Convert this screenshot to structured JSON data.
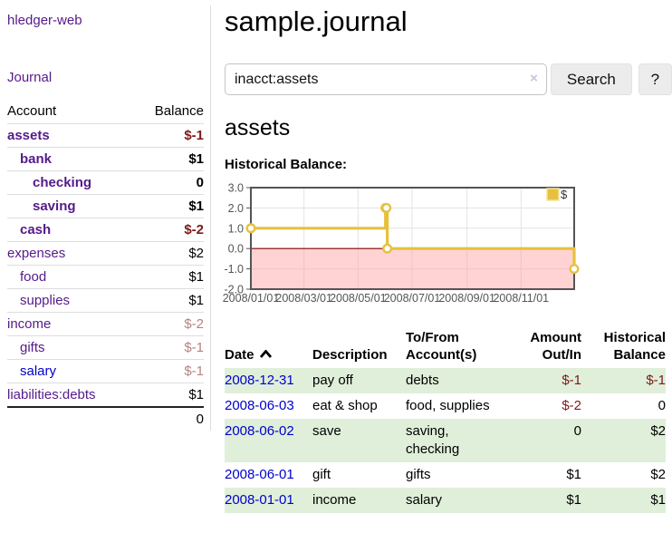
{
  "brand": "hledger-web",
  "nav": {
    "journal": "Journal"
  },
  "sidebar": {
    "header": {
      "account": "Account",
      "balance": "Balance"
    },
    "accounts": [
      {
        "name": "assets",
        "depth": 0,
        "in_filter": true,
        "balance": "$-1",
        "neg": "strong",
        "link": "visited"
      },
      {
        "name": "bank",
        "depth": 1,
        "in_filter": true,
        "balance": "$1",
        "neg": "none",
        "link": "visited"
      },
      {
        "name": "checking",
        "depth": 2,
        "in_filter": true,
        "balance": "0",
        "neg": "none",
        "link": "visited"
      },
      {
        "name": "saving",
        "depth": 2,
        "in_filter": true,
        "balance": "$1",
        "neg": "none",
        "link": "visited"
      },
      {
        "name": "cash",
        "depth": 1,
        "in_filter": true,
        "balance": "$-2",
        "neg": "strong",
        "link": "visited"
      },
      {
        "name": "expenses",
        "depth": 0,
        "in_filter": false,
        "balance": "$2",
        "neg": "none",
        "link": "visited"
      },
      {
        "name": "food",
        "depth": 1,
        "in_filter": false,
        "balance": "$1",
        "neg": "none",
        "link": "visited"
      },
      {
        "name": "supplies",
        "depth": 1,
        "in_filter": false,
        "balance": "$1",
        "neg": "none",
        "link": "visited"
      },
      {
        "name": "income",
        "depth": 0,
        "in_filter": false,
        "balance": "$-2",
        "neg": "muted",
        "link": "visited"
      },
      {
        "name": "gifts",
        "depth": 1,
        "in_filter": false,
        "balance": "$-1",
        "neg": "muted",
        "link": "visited"
      },
      {
        "name": "salary",
        "depth": 1,
        "in_filter": false,
        "balance": "$-1",
        "neg": "muted",
        "link": "unvisited"
      },
      {
        "name": "liabilities:debts",
        "depth": 0,
        "in_filter": false,
        "balance": "$1",
        "neg": "none",
        "link": "visited"
      }
    ],
    "total": "0"
  },
  "main": {
    "title": "sample.journal",
    "search": {
      "value": "inacct:assets",
      "clear_icon": "×",
      "search_button": "Search",
      "help_button": "?"
    },
    "account_heading": "assets",
    "section_heading": "Historical Balance:"
  },
  "chart_data": {
    "type": "line",
    "step": true,
    "title": "Historical Balance",
    "series": [
      {
        "name": "$",
        "color": "#e7c13e",
        "points": [
          [
            "2008-01-01",
            1
          ],
          [
            "2008-06-01",
            2
          ],
          [
            "2008-06-02",
            2
          ],
          [
            "2008-06-03",
            0
          ],
          [
            "2008-12-31",
            -1
          ]
        ]
      }
    ],
    "x_range": [
      "2008-01-01",
      "2008-12-31"
    ],
    "x_ticks": [
      "2008/01/01",
      "2008/03/01",
      "2008/05/01",
      "2008/07/01",
      "2008/09/01",
      "2008/11/01"
    ],
    "y_ticks": [
      "3.0",
      "2.0",
      "1.0",
      "0.0",
      "-1.0",
      "-2.0"
    ],
    "ylim": [
      -2,
      3
    ],
    "grid": true,
    "legend": {
      "label": "$",
      "position": "top-right"
    },
    "colors": {
      "zero_line": "#8b0000",
      "negative_region": "rgba(255,158,158,0.45)",
      "gridline": "#e3e3e3",
      "frame": "#545454",
      "tick_text": "#545454",
      "legend_border": "#f4e3a1"
    }
  },
  "register": {
    "headers": {
      "date": "Date",
      "description": "Description",
      "accounts": "To/From\nAccount(s)",
      "amount": "Amount\nOut/In",
      "balance": "Historical\nBalance"
    },
    "rows": [
      {
        "date": "2008-12-31",
        "description": "pay off",
        "accounts": "debts",
        "amount": "$-1",
        "amount_neg": true,
        "balance": "$-1",
        "balance_neg": true
      },
      {
        "date": "2008-06-03",
        "description": "eat & shop",
        "accounts": "food, supplies",
        "amount": "$-2",
        "amount_neg": true,
        "balance": "0",
        "balance_neg": false
      },
      {
        "date": "2008-06-02",
        "description": "save",
        "accounts": "saving,\nchecking",
        "amount": "0",
        "amount_neg": false,
        "balance": "$2",
        "balance_neg": false
      },
      {
        "date": "2008-06-01",
        "description": "gift",
        "accounts": "gifts",
        "amount": "$1",
        "amount_neg": false,
        "balance": "$2",
        "balance_neg": false
      },
      {
        "date": "2008-01-01",
        "description": "income",
        "accounts": "salary",
        "amount": "$1",
        "amount_neg": false,
        "balance": "$1",
        "balance_neg": false
      }
    ]
  }
}
